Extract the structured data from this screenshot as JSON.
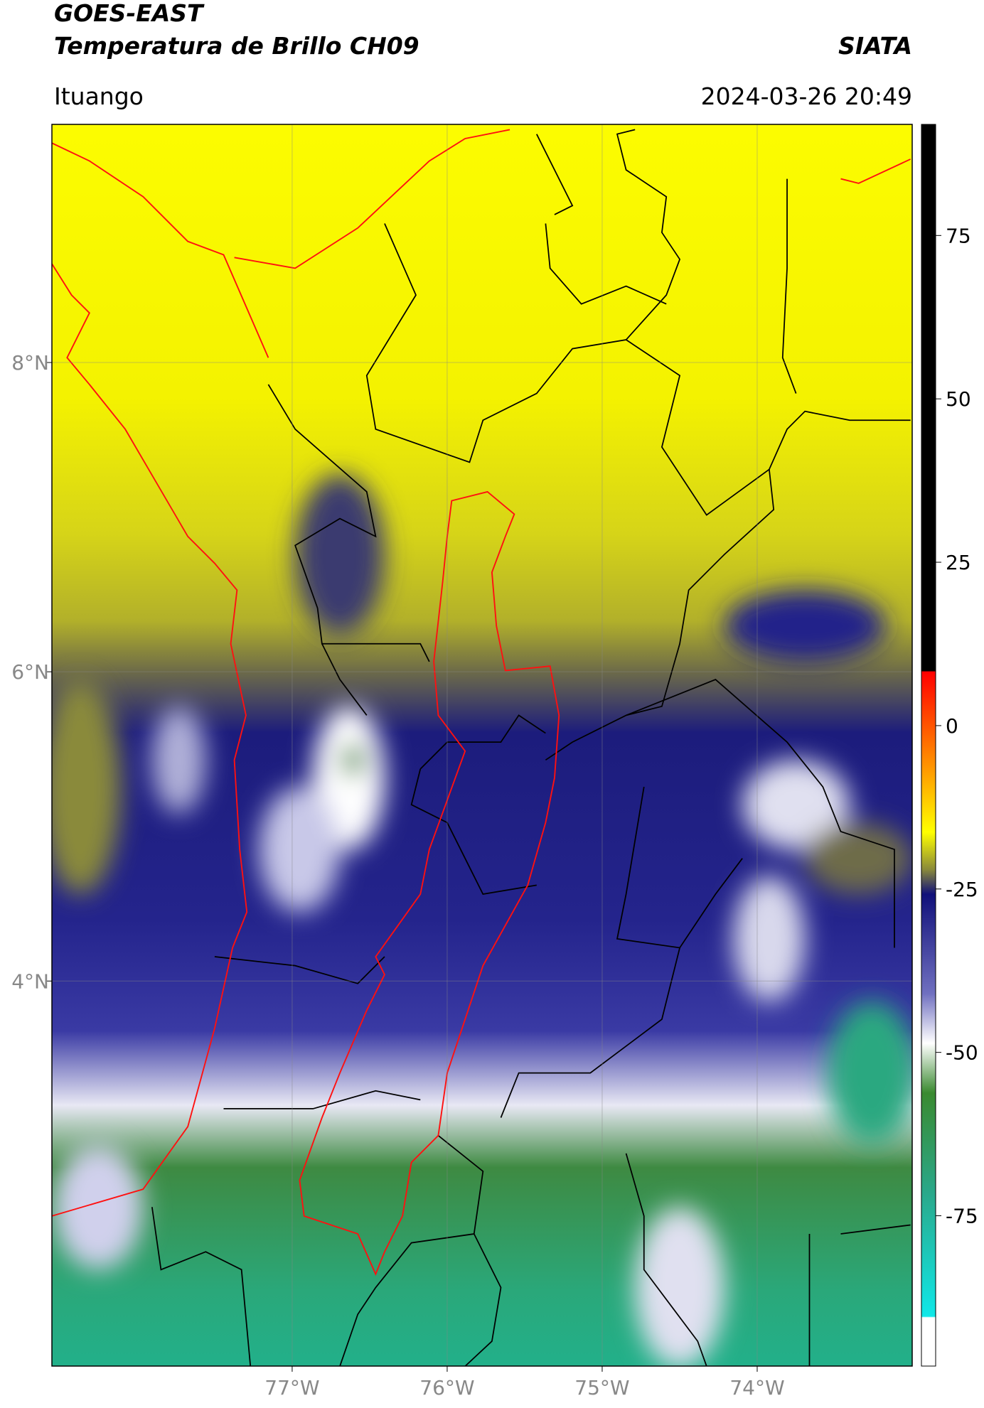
{
  "chart_data": {
    "type": "map",
    "title": "GOES-EAST",
    "subtitle": "Temperatura de Brillo CH09",
    "source": "SIATA",
    "location": "Ituango",
    "date": "2024-03-26 20:49",
    "xlim": [
      -78.55,
      -73.0
    ],
    "ylim": [
      1.51,
      9.54
    ],
    "xticks": [
      {
        "value": -77,
        "label": "77°W"
      },
      {
        "value": -76,
        "label": "76°W"
      },
      {
        "value": -75,
        "label": "75°W"
      },
      {
        "value": -74,
        "label": "74°W"
      }
    ],
    "yticks": [
      {
        "value": 8,
        "label": "8°N"
      },
      {
        "value": 6,
        "label": "6°N"
      },
      {
        "value": 4,
        "label": "4°N"
      }
    ],
    "grid": true,
    "colorbar": {
      "lim": [
        -98,
        92
      ],
      "ticks": [
        75,
        50,
        25,
        0,
        -25,
        -50,
        -75
      ]
    }
  }
}
